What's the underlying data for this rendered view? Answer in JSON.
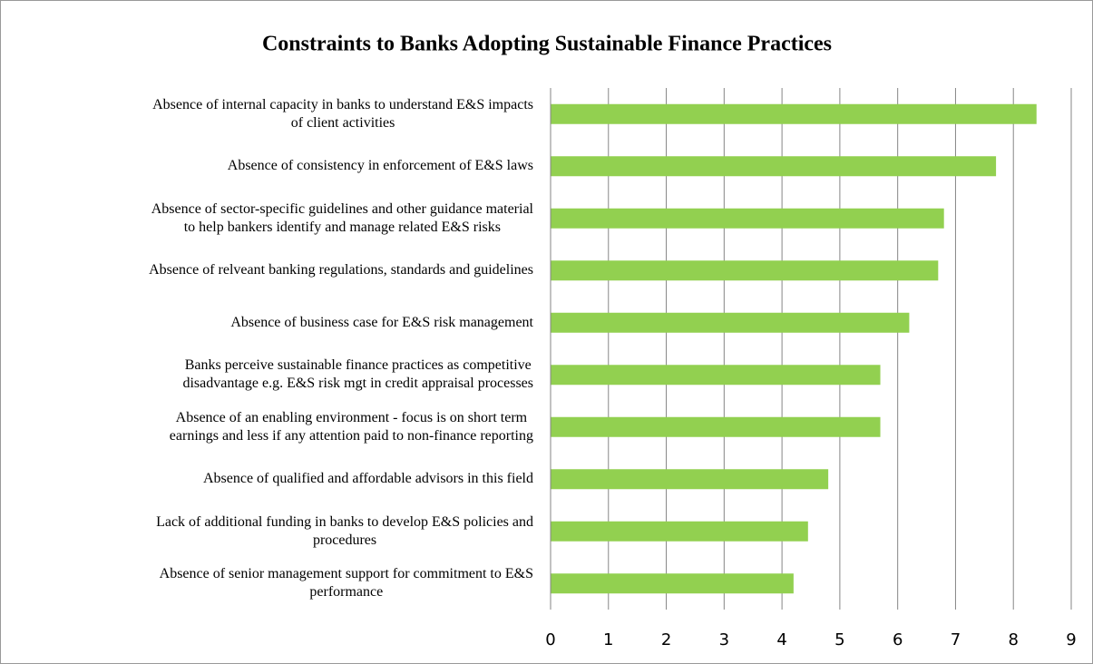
{
  "chart_data": {
    "type": "barh",
    "title": "Constraints to Banks Adopting Sustainable Finance Practices",
    "categories": [
      "Absence of internal capacity in banks to understand E&S impacts\nof client activities",
      "Absence of consistency in enforcement of E&S laws",
      "Absence of sector-specific guidelines and other guidance material\nto help bankers identify and manage related E&S risks",
      "Absence of relveant banking regulations, standards and guidelines",
      "Absence of business case for E&S risk management",
      "Banks perceive sustainable finance practices as competitive\ndisadvantage e.g. E&S risk mgt in credit appraisal processes",
      "Absence of an enabling environment - focus is on short term\nearnings and less if any attention paid to non-finance reporting",
      "Absence of qualified and affordable advisors in this field",
      "Lack of additional funding in banks to develop E&S policies and\nprocedures",
      "Absence of senior management support for commitment to E&S\nperformance"
    ],
    "values": [
      8.4,
      7.7,
      6.8,
      6.7,
      6.2,
      5.7,
      5.7,
      4.8,
      4.45,
      4.2
    ],
    "color": "#92d050",
    "xlim": [
      0,
      9
    ],
    "xticks": [
      0,
      1,
      2,
      3,
      4,
      5,
      6,
      7,
      8,
      9
    ],
    "grid": true
  }
}
